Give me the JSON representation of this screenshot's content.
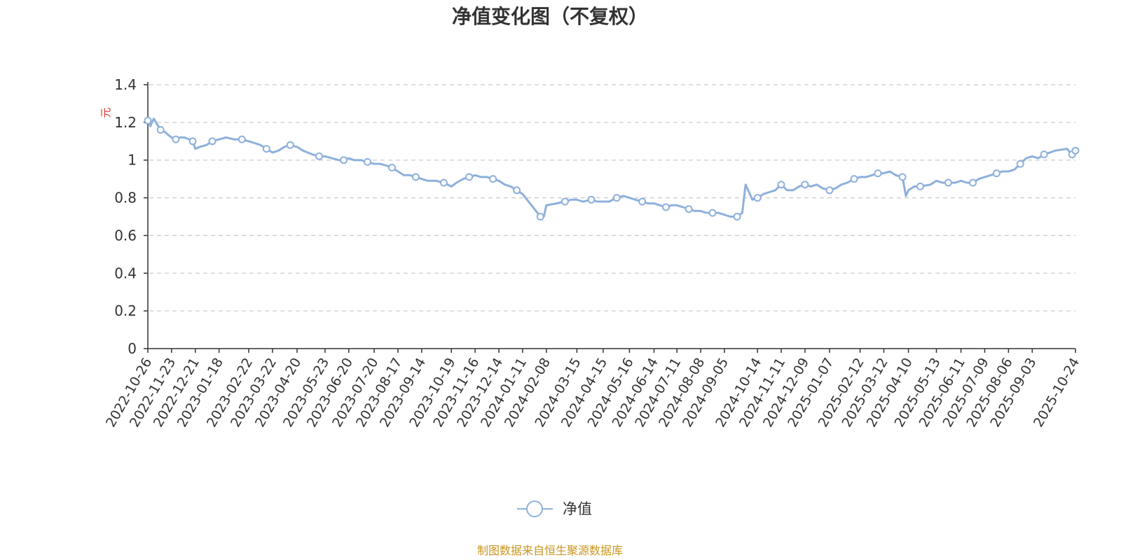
{
  "chart_data": {
    "type": "line",
    "title": "净值变化图（不复权）",
    "y_unit": "元",
    "ylim": [
      0,
      1.4
    ],
    "y_ticks": [
      "0",
      "0.2",
      "0.4",
      "0.6",
      "0.8",
      "1",
      "1.2",
      "1.4"
    ],
    "grid": true,
    "legend_position": "bottom",
    "x_ticks": [
      "2022-10-26",
      "2022-11-23",
      "2022-12-21",
      "2023-01-18",
      "2023-02-22",
      "2023-03-22",
      "2023-04-20",
      "2023-05-23",
      "2023-06-20",
      "2023-07-20",
      "2023-08-17",
      "2023-09-14",
      "2023-10-19",
      "2023-11-16",
      "2023-12-14",
      "2024-01-11",
      "2024-02-08",
      "2024-03-15",
      "2024-04-15",
      "2024-05-16",
      "2024-06-14",
      "2024-07-11",
      "2024-08-08",
      "2024-09-05",
      "2024-10-14",
      "2024-11-11",
      "2024-12-09",
      "2025-01-07",
      "2025-02-12",
      "2025-03-12",
      "2025-04-10",
      "2025-05-13",
      "2025-06-11",
      "2025-07-09",
      "2025-08-06",
      "2025-09-03",
      "2025-10-24"
    ],
    "series": [
      {
        "name": "净值",
        "color": "#8eb0dc",
        "x": [
          "2022-10-26",
          "2022-10-29",
          "2022-11-02",
          "2022-11-06",
          "2022-11-10",
          "2022-11-15",
          "2022-11-20",
          "2022-11-23",
          "2022-11-28",
          "2022-12-03",
          "2022-12-08",
          "2022-12-14",
          "2022-12-18",
          "2022-12-21",
          "2022-12-26",
          "2023-01-03",
          "2023-01-10",
          "2023-01-18",
          "2023-01-26",
          "2023-02-05",
          "2023-02-14",
          "2023-02-22",
          "2023-03-01",
          "2023-03-08",
          "2023-03-15",
          "2023-03-22",
          "2023-03-29",
          "2023-04-05",
          "2023-04-12",
          "2023-04-20",
          "2023-04-27",
          "2023-05-08",
          "2023-05-16",
          "2023-05-23",
          "2023-05-31",
          "2023-06-08",
          "2023-06-14",
          "2023-06-20",
          "2023-06-26",
          "2023-07-04",
          "2023-07-12",
          "2023-07-20",
          "2023-07-27",
          "2023-08-04",
          "2023-08-10",
          "2023-08-17",
          "2023-08-24",
          "2023-08-31",
          "2023-09-07",
          "2023-09-14",
          "2023-09-21",
          "2023-10-01",
          "2023-10-10",
          "2023-10-19",
          "2023-10-25",
          "2023-11-02",
          "2023-11-09",
          "2023-11-16",
          "2023-11-23",
          "2023-11-30",
          "2023-12-07",
          "2023-12-14",
          "2023-12-21",
          "2023-12-28",
          "2024-01-04",
          "2024-01-11",
          "2024-01-18",
          "2024-01-25",
          "2024-02-01",
          "2024-02-05",
          "2024-02-08",
          "2024-02-20",
          "2024-03-01",
          "2024-03-08",
          "2024-03-15",
          "2024-03-22",
          "2024-04-01",
          "2024-04-08",
          "2024-04-15",
          "2024-04-22",
          "2024-05-01",
          "2024-05-09",
          "2024-05-16",
          "2024-05-23",
          "2024-05-31",
          "2024-06-07",
          "2024-06-14",
          "2024-06-21",
          "2024-06-28",
          "2024-07-04",
          "2024-07-11",
          "2024-07-18",
          "2024-07-25",
          "2024-08-01",
          "2024-08-08",
          "2024-08-15",
          "2024-08-22",
          "2024-08-29",
          "2024-09-05",
          "2024-09-12",
          "2024-09-20",
          "2024-09-26",
          "2024-09-30",
          "2024-10-08",
          "2024-10-14",
          "2024-10-21",
          "2024-10-28",
          "2024-11-04",
          "2024-11-11",
          "2024-11-18",
          "2024-11-25",
          "2024-12-02",
          "2024-12-09",
          "2024-12-16",
          "2024-12-23",
          "2024-12-30",
          "2025-01-07",
          "2025-01-14",
          "2025-01-21",
          "2025-01-28",
          "2025-02-05",
          "2025-02-12",
          "2025-02-19",
          "2025-02-26",
          "2025-03-05",
          "2025-03-12",
          "2025-03-19",
          "2025-03-26",
          "2025-04-03",
          "2025-04-07",
          "2025-04-10",
          "2025-04-17",
          "2025-04-24",
          "2025-05-06",
          "2025-05-13",
          "2025-05-20",
          "2025-05-27",
          "2025-06-04",
          "2025-06-11",
          "2025-06-18",
          "2025-06-25",
          "2025-07-02",
          "2025-07-09",
          "2025-07-16",
          "2025-07-23",
          "2025-07-30",
          "2025-08-06",
          "2025-08-13",
          "2025-08-20",
          "2025-08-27",
          "2025-09-03",
          "2025-09-10",
          "2025-09-17",
          "2025-09-24",
          "2025-09-30",
          "2025-10-14",
          "2025-10-20",
          "2025-10-24"
        ],
        "values": [
          1.21,
          1.18,
          1.22,
          1.19,
          1.16,
          1.15,
          1.13,
          1.12,
          1.11,
          1.12,
          1.12,
          1.11,
          1.1,
          1.06,
          1.07,
          1.08,
          1.1,
          1.11,
          1.12,
          1.11,
          1.11,
          1.1,
          1.09,
          1.08,
          1.06,
          1.04,
          1.05,
          1.07,
          1.08,
          1.07,
          1.05,
          1.03,
          1.02,
          1.02,
          1.01,
          1.0,
          1.0,
          1.01,
          1.0,
          1.0,
          0.99,
          0.98,
          0.98,
          0.97,
          0.96,
          0.94,
          0.92,
          0.92,
          0.91,
          0.9,
          0.89,
          0.89,
          0.88,
          0.86,
          0.88,
          0.9,
          0.91,
          0.92,
          0.91,
          0.91,
          0.9,
          0.89,
          0.87,
          0.86,
          0.84,
          0.82,
          0.78,
          0.74,
          0.7,
          0.7,
          0.76,
          0.77,
          0.78,
          0.79,
          0.79,
          0.78,
          0.79,
          0.78,
          0.78,
          0.78,
          0.8,
          0.81,
          0.8,
          0.79,
          0.78,
          0.77,
          0.77,
          0.76,
          0.75,
          0.76,
          0.76,
          0.75,
          0.74,
          0.73,
          0.73,
          0.72,
          0.72,
          0.72,
          0.71,
          0.7,
          0.7,
          0.72,
          0.87,
          0.79,
          0.8,
          0.82,
          0.83,
          0.84,
          0.87,
          0.84,
          0.84,
          0.86,
          0.87,
          0.86,
          0.87,
          0.85,
          0.84,
          0.85,
          0.87,
          0.88,
          0.9,
          0.91,
          0.91,
          0.92,
          0.93,
          0.93,
          0.94,
          0.92,
          0.91,
          0.81,
          0.84,
          0.86,
          0.86,
          0.87,
          0.89,
          0.88,
          0.88,
          0.88,
          0.89,
          0.88,
          0.88,
          0.9,
          0.91,
          0.92,
          0.93,
          0.94,
          0.94,
          0.95,
          0.98,
          1.01,
          1.02,
          1.01,
          1.03,
          1.04,
          1.05,
          1.06,
          1.03,
          1.05
        ]
      }
    ]
  },
  "source_text": "制图数据来自恒生聚源数据库",
  "colors": {
    "line": "#8eb0dc",
    "unit_label": "#e0302a",
    "source_text": "#c8951e",
    "grid": "#cccccc",
    "axis": "#333333"
  }
}
